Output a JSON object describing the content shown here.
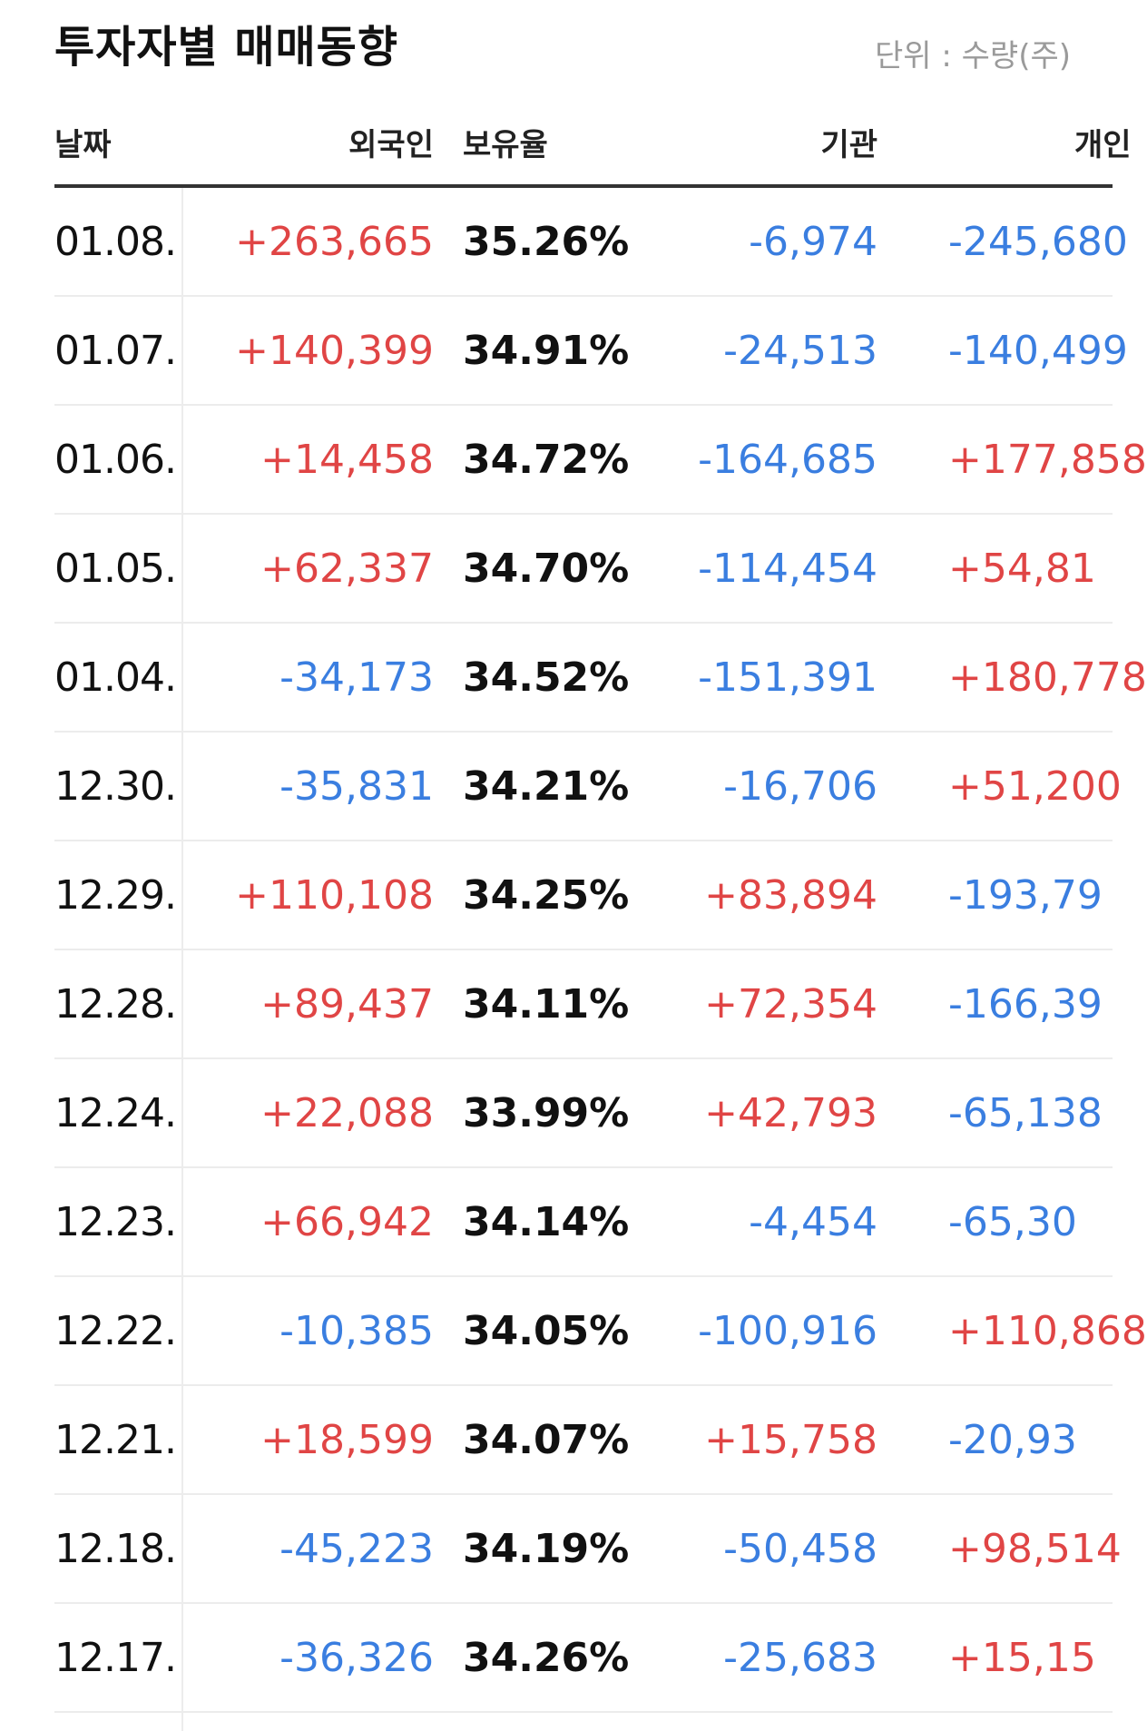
{
  "title": "투자자별 매매동향",
  "unit": "단위 : 수량(주)",
  "columns": {
    "date": "날짜",
    "foreign": "외국인",
    "ratio": "보유율",
    "institution": "기관",
    "individual": "개인"
  },
  "colors": {
    "positive": "#e04545",
    "negative": "#3a7ee0",
    "divider": "#333333"
  },
  "rows": [
    {
      "date": "01.08.",
      "foreign": "+263,665",
      "ratio": "35.26%",
      "institution": "-6,974",
      "individual": "-245,680"
    },
    {
      "date": "01.07.",
      "foreign": "+140,399",
      "ratio": "34.91%",
      "institution": "-24,513",
      "individual": "-140,499"
    },
    {
      "date": "01.06.",
      "foreign": "+14,458",
      "ratio": "34.72%",
      "institution": "-164,685",
      "individual": "+177,858"
    },
    {
      "date": "01.05.",
      "foreign": "+62,337",
      "ratio": "34.70%",
      "institution": "-114,454",
      "individual": "+54,81"
    },
    {
      "date": "01.04.",
      "foreign": "-34,173",
      "ratio": "34.52%",
      "institution": "-151,391",
      "individual": "+180,778"
    },
    {
      "date": "12.30.",
      "foreign": "-35,831",
      "ratio": "34.21%",
      "institution": "-16,706",
      "individual": "+51,200"
    },
    {
      "date": "12.29.",
      "foreign": "+110,108",
      "ratio": "34.25%",
      "institution": "+83,894",
      "individual": "-193,79"
    },
    {
      "date": "12.28.",
      "foreign": "+89,437",
      "ratio": "34.11%",
      "institution": "+72,354",
      "individual": "-166,39"
    },
    {
      "date": "12.24.",
      "foreign": "+22,088",
      "ratio": "33.99%",
      "institution": "+42,793",
      "individual": "-65,138"
    },
    {
      "date": "12.23.",
      "foreign": "+66,942",
      "ratio": "34.14%",
      "institution": "-4,454",
      "individual": "-65,30"
    },
    {
      "date": "12.22.",
      "foreign": "-10,385",
      "ratio": "34.05%",
      "institution": "-100,916",
      "individual": "+110,868"
    },
    {
      "date": "12.21.",
      "foreign": "+18,599",
      "ratio": "34.07%",
      "institution": "+15,758",
      "individual": "-20,93"
    },
    {
      "date": "12.18.",
      "foreign": "-45,223",
      "ratio": "34.19%",
      "institution": "-50,458",
      "individual": "+98,514"
    },
    {
      "date": "12.17.",
      "foreign": "-36,326",
      "ratio": "34.26%",
      "institution": "-25,683",
      "individual": "+15,15"
    }
  ]
}
